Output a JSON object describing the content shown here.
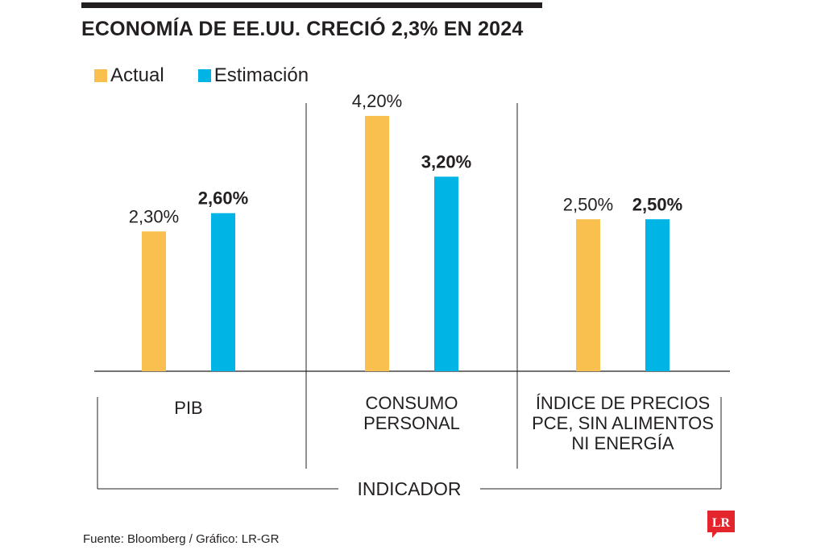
{
  "title": "ECONOMÍA DE EE.UU. CRECIÓ 2,3% EN 2024",
  "source": "Fuente: Bloomberg / Gráfico: LR-GR",
  "logo_text": "LR",
  "colors": {
    "actual": "#f9c04f",
    "estimacion": "#00b4e6",
    "axis": "#231f20",
    "logo": "#e4252c"
  },
  "chart_data": {
    "type": "bar",
    "categories": [
      "PIB",
      "CONSUMO PERSONAL",
      "ÍNDICE DE PRECIOS PCE, SIN ALIMENTOS NI ENERGÍA"
    ],
    "category_lines": [
      [
        "PIB"
      ],
      [
        "CONSUMO",
        "PERSONAL"
      ],
      [
        "ÍNDICE DE PRECIOS",
        "PCE, SIN ALIMENTOS",
        "NI ENERGÍA"
      ]
    ],
    "series": [
      {
        "name": "Actual",
        "values": [
          2.3,
          4.2,
          2.5
        ],
        "labels": [
          "2,30%",
          "4,20%",
          "2,50%"
        ]
      },
      {
        "name": "Estimación",
        "values": [
          2.6,
          3.2,
          2.5
        ],
        "labels": [
          "2,60%",
          "3,20%",
          "2,50%"
        ]
      }
    ],
    "xlabel": "INDICADOR",
    "ylabel": "",
    "ylim": [
      0,
      4.2
    ],
    "legend_position": "top-left",
    "grid": false
  }
}
